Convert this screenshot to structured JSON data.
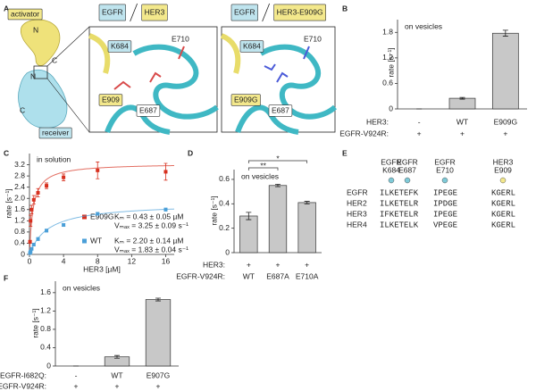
{
  "panel_a": {
    "panel": "A",
    "cartoon": {
      "top": "activator",
      "bottom": "receiver",
      "termini": [
        "N",
        "C",
        "N",
        "C"
      ]
    },
    "structures": [
      {
        "proteins": [
          "EGFR",
          "HER3"
        ],
        "residues": [
          "K684",
          "E710",
          "E909",
          "E687"
        ]
      },
      {
        "proteins": [
          "EGFR",
          "HER3-E909G"
        ],
        "residues": [
          "K684",
          "E710",
          "E909G",
          "E687"
        ]
      }
    ]
  },
  "panel_e": {
    "panel": "E",
    "columns": [
      {
        "protein": "EGFR",
        "residue": "K684",
        "color": "#7ecad8"
      },
      {
        "protein": "EGFR",
        "residue": "E687",
        "color": "#7ecad8"
      },
      {
        "protein": "EGFR",
        "residue": "E710",
        "color": "#7ecad8"
      },
      {
        "protein": "HER3",
        "residue": "E909",
        "color": "#f3e88c"
      }
    ],
    "rows": [
      {
        "name": "EGFR",
        "segments": [
          "ILKETEFK",
          "IPEGE",
          "KGERL"
        ]
      },
      {
        "name": "HER2",
        "segments": [
          "ILKETELR",
          "IPDGE",
          "KGERL"
        ]
      },
      {
        "name": "HER3",
        "segments": [
          "IFKETELR",
          "IPEGE",
          "KGERL"
        ]
      },
      {
        "name": "HER4",
        "segments": [
          "ILKETELK",
          "VPEGE",
          "KGERL"
        ]
      }
    ]
  },
  "chart_data": [
    {
      "type": "bar",
      "panel": "B",
      "annotation": "on vesicles",
      "y_label": "rate [s⁻¹]",
      "category_label": "HER3:",
      "categories": [
        "-",
        "WT",
        "E909G"
      ],
      "x_row2": {
        "label": "EGFR-V924R:",
        "values": [
          "+",
          "+",
          "+"
        ]
      },
      "values": [
        0,
        0.25,
        1.78
      ],
      "errors": [
        0,
        0.02,
        0.07
      ],
      "color": "#c8c8c8",
      "ylim": [
        0,
        2.1
      ],
      "yticks": [
        0,
        0.6,
        1.2,
        1.8
      ]
    },
    {
      "type": "scatter",
      "panel": "C",
      "annotation": "in solution",
      "y_label": "rate [s⁻¹]",
      "x_label": "HER3 [µM]",
      "xlim": [
        0,
        17
      ],
      "xticks": [
        0,
        4,
        8,
        12,
        16
      ],
      "ylim": [
        0,
        3.6
      ],
      "yticks": [
        0,
        0.4,
        0.8,
        1.2,
        1.6,
        {
          "value": 2,
          "label": "2.0"
        },
        2.4,
        2.8,
        3.2
      ],
      "series": [
        {
          "name": "E909G",
          "color": "#d7301f",
          "x": [
            0.0625,
            0.125,
            0.25,
            0.5,
            1,
            2,
            4,
            8,
            16
          ],
          "values": [
            0.45,
            1.2,
            1.6,
            1.95,
            2.2,
            2.45,
            2.75,
            3.0,
            2.95
          ],
          "errors": [
            0.05,
            0.2,
            0.15,
            0.15,
            0.15,
            0.1,
            0.12,
            0.3,
            0.3
          ],
          "fit": {
            "km": 0.43,
            "vmax": 3.25
          },
          "fit_labels": [
            "Kₘ = 0.43 ± 0.05 µM",
            "Vₘₐₓ = 3.25 ± 0.09 s⁻¹"
          ]
        },
        {
          "name": "WT",
          "color": "#4a9fd8",
          "x": [
            0.0625,
            0.125,
            0.25,
            0.5,
            1,
            2,
            4,
            8,
            16
          ],
          "values": [
            0.05,
            0.1,
            0.2,
            0.35,
            0.55,
            0.85,
            1.05,
            1.45,
            1.6
          ],
          "errors": [
            0.03,
            0.03,
            0.04,
            0.04,
            0.05,
            0.05,
            0.05,
            0.05,
            0.05
          ],
          "fit": {
            "km": 2.2,
            "vmax": 1.83
          },
          "fit_labels": [
            "Kₘ = 2.20 ± 0.14 µM",
            "Vₘₐₓ = 1.83 ± 0.04 s⁻¹"
          ]
        }
      ]
    },
    {
      "type": "bar",
      "panel": "D",
      "annotation": "on vesicles",
      "y_label": "rate [s⁻¹]",
      "category_label": "HER3:",
      "categories": [
        "+",
        "+",
        "+"
      ],
      "x_row2": {
        "label": "EGFR-V924R:",
        "values": [
          "WT",
          "E687A",
          "E710A"
        ]
      },
      "values": [
        0.3,
        0.55,
        0.41
      ],
      "errors": [
        0.03,
        0.01,
        0.01
      ],
      "color": "#c8c8c8",
      "ylim": [
        0,
        0.68
      ],
      "yticks": [
        0,
        0.2,
        0.4,
        0.6
      ],
      "significance": [
        {
          "from": 0,
          "to": 1,
          "label": "**"
        },
        {
          "from": 0,
          "to": 2,
          "label": "*"
        }
      ]
    },
    {
      "type": "bar",
      "panel": "F",
      "annotation": "on vesicles",
      "y_label": "rate [s⁻¹]",
      "category_label": "EGFR-I682Q:",
      "categories": [
        "-",
        "WT",
        "E907G"
      ],
      "x_row2": {
        "label": "EGFR-V924R:",
        "values": [
          "+",
          "+",
          "+"
        ]
      },
      "values": [
        0,
        0.2,
        1.45
      ],
      "errors": [
        0,
        0.03,
        0.03
      ],
      "color": "#c8c8c8",
      "ylim": [
        0,
        1.85
      ],
      "yticks": [
        0,
        0.4,
        0.8,
        1.2,
        1.6
      ]
    }
  ]
}
